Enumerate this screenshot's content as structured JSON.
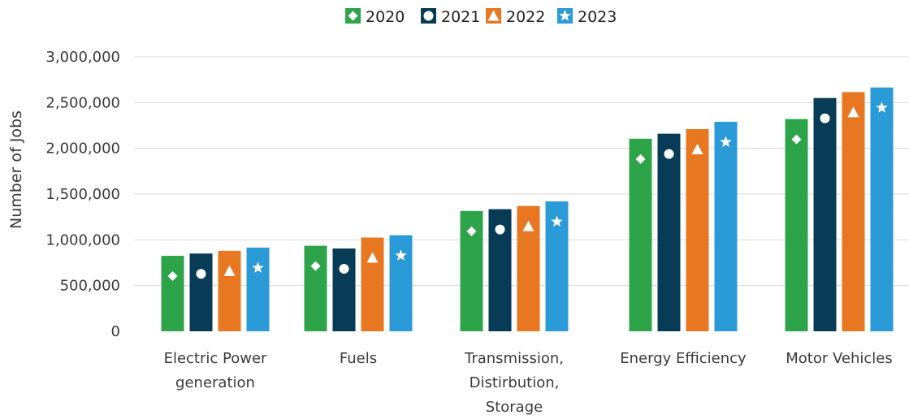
{
  "chart_data": {
    "type": "bar",
    "ylabel": "Number of Jobs",
    "xlabel": "",
    "title": "",
    "ylim": [
      0,
      3000000
    ],
    "yticks": [
      0,
      500000,
      1000000,
      1500000,
      2000000,
      2500000,
      3000000
    ],
    "ytick_labels": [
      "0",
      "500,000",
      "1,000,000",
      "1,500,000",
      "2,000,000",
      "2,500,000",
      "3,000,000"
    ],
    "grid": true,
    "legend_position": "top-center",
    "categories": [
      [
        "Electric Power",
        "generation"
      ],
      [
        "Fuels"
      ],
      [
        "Transmission,",
        "Distirbution,",
        "Storage"
      ],
      [
        "Energy Efficiency"
      ],
      [
        "Motor Vehicles"
      ]
    ],
    "series": [
      {
        "name": "2020",
        "color": "#2ea44a",
        "marker": "diamond",
        "values": [
          825000,
          935000,
          1315000,
          2105000,
          2320000
        ]
      },
      {
        "name": "2021",
        "color": "#073b56",
        "marker": "circle",
        "values": [
          850000,
          905000,
          1335000,
          2160000,
          2550000
        ]
      },
      {
        "name": "2022",
        "color": "#e87722",
        "marker": "triangle",
        "values": [
          880000,
          1025000,
          1370000,
          2210000,
          2615000
        ]
      },
      {
        "name": "2023",
        "color": "#2b9bd8",
        "marker": "star",
        "values": [
          915000,
          1050000,
          1420000,
          2290000,
          2665000
        ]
      }
    ]
  }
}
